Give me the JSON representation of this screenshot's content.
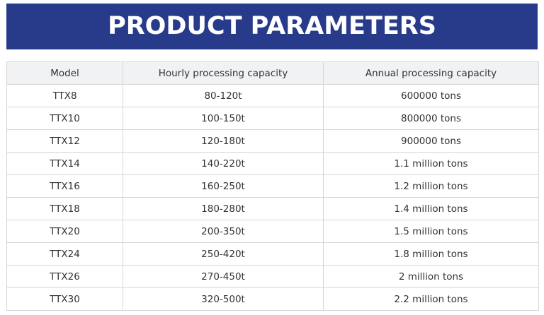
{
  "banner": {
    "title": "PRODUCT PARAMETERS"
  },
  "colors": {
    "banner_bg": "#283a8a",
    "header_bg": "#f1f2f4",
    "border": "#d6d6d6",
    "text": "#333333"
  },
  "table": {
    "headers": [
      "Model",
      "Hourly processing capacity",
      "Annual processing capacity"
    ],
    "rows": [
      [
        "TTX8",
        "80-120t",
        "600000 tons"
      ],
      [
        "TTX10",
        "100-150t",
        "800000 tons"
      ],
      [
        "TTX12",
        "120-180t",
        "900000 tons"
      ],
      [
        "TTX14",
        "140-220t",
        "1.1 million tons"
      ],
      [
        "TTX16",
        "160-250t",
        "1.2 million tons"
      ],
      [
        "TTX18",
        "180-280t",
        "1.4 million tons"
      ],
      [
        "TTX20",
        "200-350t",
        "1.5 million tons"
      ],
      [
        "TTX24",
        "250-420t",
        "1.8 million tons"
      ],
      [
        "TTX26",
        "270-450t",
        "2 million tons"
      ],
      [
        "TTX30",
        "320-500t",
        "2.2 million tons"
      ]
    ]
  }
}
